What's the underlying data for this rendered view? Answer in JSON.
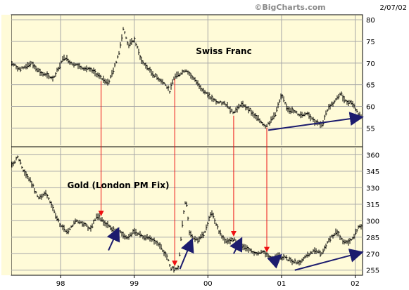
{
  "header": {
    "watermark": "©BigCharts.com",
    "date": "2/07/02"
  },
  "colors": {
    "plot_bg": "#fffbd8",
    "page_bg": "#ffffff",
    "grid": "#a7a7a7",
    "frame": "#000000",
    "price_bar": "#000000",
    "red_arrow": "#ee1111",
    "blue_arrow": "#1c1c6e",
    "watermark_text": "#8a8a8a"
  },
  "chart_data": [
    {
      "type": "line",
      "style": "price-bars",
      "title": "Swiss Franc",
      "ylim": [
        51,
        81
      ],
      "y_ticks": [
        "80",
        "75",
        "70",
        "65",
        "60",
        "55"
      ],
      "grid": true,
      "x": [
        1997.33,
        1997.45,
        1997.6,
        1997.75,
        1997.9,
        1998.05,
        1998.15,
        1998.3,
        1998.45,
        1998.55,
        1998.65,
        1998.73,
        1998.8,
        1998.85,
        1998.92,
        1999.0,
        1999.1,
        1999.25,
        1999.4,
        1999.48,
        1999.55,
        1999.62,
        1999.7,
        1999.85,
        2000.0,
        2000.12,
        2000.25,
        2000.35,
        2000.45,
        2000.55,
        2000.65,
        2000.72,
        2000.78,
        2000.85,
        2000.92,
        2001.0,
        2001.08,
        2001.15,
        2001.25,
        2001.35,
        2001.45,
        2001.55,
        2001.6,
        2001.65,
        2001.72,
        2001.8,
        2001.88,
        2001.95,
        2002.02,
        2002.08
      ],
      "values": [
        70,
        68.5,
        70,
        67.5,
        66.5,
        71.5,
        70,
        69,
        68,
        66.5,
        65.5,
        69,
        73,
        78,
        74,
        75.5,
        70.5,
        67.5,
        65.5,
        63.5,
        67,
        67.5,
        68.5,
        65.5,
        62.5,
        61,
        60.5,
        58.5,
        60.5,
        59.5,
        57.5,
        56.5,
        55.5,
        56.5,
        58.5,
        62.5,
        59.5,
        59,
        58,
        58.5,
        56.5,
        55.5,
        58.5,
        60,
        61,
        63,
        61,
        61,
        59,
        57.5
      ]
    },
    {
      "type": "line",
      "style": "price-bars",
      "title": "Gold (London PM Fix)",
      "ylim": [
        251,
        366
      ],
      "y_ticks": [
        "360",
        "345",
        "330",
        "315",
        "300",
        "285",
        "270",
        "255"
      ],
      "grid": true,
      "x": [
        1997.33,
        1997.42,
        1997.5,
        1997.6,
        1997.7,
        1997.8,
        1997.9,
        1998.0,
        1998.1,
        1998.2,
        1998.3,
        1998.4,
        1998.5,
        1998.6,
        1998.7,
        1998.8,
        1998.9,
        1999.0,
        1999.1,
        1999.2,
        1999.3,
        1999.4,
        1999.45,
        1999.5,
        1999.55,
        1999.6,
        1999.65,
        1999.7,
        1999.75,
        1999.85,
        1999.95,
        2000.05,
        2000.15,
        2000.25,
        2000.35,
        2000.45,
        2000.55,
        2000.65,
        2000.75,
        2000.85,
        2000.95,
        2001.05,
        2001.15,
        2001.25,
        2001.35,
        2001.45,
        2001.55,
        2001.65,
        2001.75,
        2001.85,
        2001.95,
        2002.05
      ],
      "values": [
        350,
        358,
        345,
        335,
        320,
        325,
        310,
        295,
        290,
        300,
        298,
        292,
        305,
        298,
        292,
        290,
        285,
        290,
        286,
        284,
        281,
        272,
        265,
        257,
        256,
        258,
        295,
        322,
        288,
        282,
        288,
        308,
        290,
        280,
        283,
        276,
        274,
        270,
        272,
        265,
        268,
        266,
        263,
        262,
        268,
        273,
        270,
        283,
        290,
        280,
        282,
        295
      ]
    }
  ],
  "x_axis": {
    "labels": [
      "98",
      "99",
      "00",
      "01",
      "02"
    ],
    "label_years": [
      1998,
      1999,
      2000,
      2001,
      2002
    ],
    "x_range": [
      1997.33,
      2002.1
    ]
  },
  "annotations": {
    "red_arrows_x": [
      1998.55,
      1999.55,
      2000.35,
      2000.8
    ],
    "gold_up_arrows": [
      {
        "x1": 1998.65,
        "y1": 273,
        "x2": 1998.78,
        "y2": 292
      },
      {
        "x1": 1999.62,
        "y1": 256,
        "x2": 1999.78,
        "y2": 282
      },
      {
        "x1": 2000.35,
        "y1": 270,
        "x2": 2000.45,
        "y2": 283
      },
      {
        "x1": 2000.88,
        "y1": 262,
        "x2": 2000.98,
        "y2": 268
      },
      {
        "x1": 2001.18,
        "y1": 255,
        "x2": 2002.08,
        "y2": 271
      }
    ],
    "franc_trend_arrow": {
      "x1": 2000.82,
      "y1": 54.5,
      "x2": 2002.08,
      "y2": 57.5
    }
  }
}
